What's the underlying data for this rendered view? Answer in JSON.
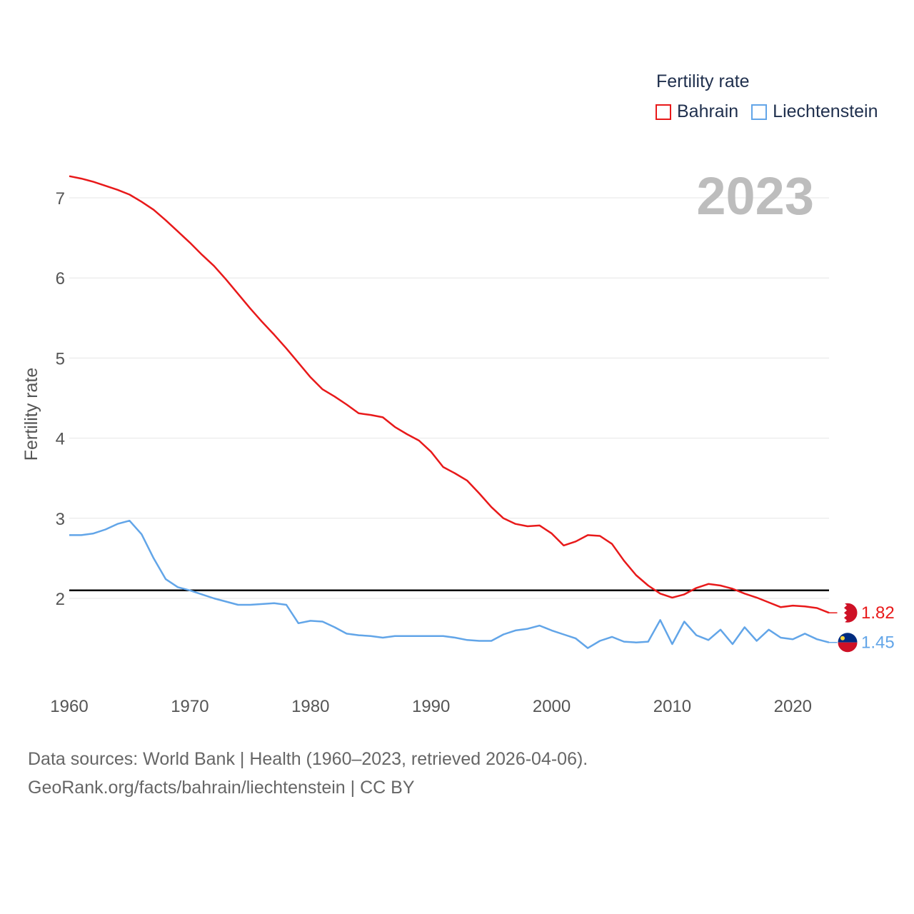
{
  "legend": {
    "title": "Fertility rate",
    "items": [
      {
        "label": "Bahrain",
        "color": "#e8191a"
      },
      {
        "label": "Liechtenstein",
        "color": "#62a5e8"
      }
    ]
  },
  "year_label": "2023",
  "footer": {
    "line1": "Data sources: World Bank | Health (1960–2023, retrieved 2026-04-06).",
    "line2": "GeoRank.org/facts/bahrain/liechtenstein | CC BY"
  },
  "chart_data": {
    "type": "line",
    "title": "Fertility rate",
    "xlabel": "",
    "ylabel": "Fertility rate",
    "xlim": [
      1960,
      2023
    ],
    "ylim": [
      1,
      7.5
    ],
    "x_ticks": [
      1960,
      1970,
      1980,
      1990,
      2000,
      2010,
      2020
    ],
    "y_ticks": [
      2,
      3,
      4,
      5,
      6,
      7
    ],
    "grid": true,
    "reference_line": {
      "y": 2.1,
      "color": "#000000"
    },
    "x": [
      1960,
      1961,
      1962,
      1963,
      1964,
      1965,
      1966,
      1967,
      1968,
      1969,
      1970,
      1971,
      1972,
      1973,
      1974,
      1975,
      1976,
      1977,
      1978,
      1979,
      1980,
      1981,
      1982,
      1983,
      1984,
      1985,
      1986,
      1987,
      1988,
      1989,
      1990,
      1991,
      1992,
      1993,
      1994,
      1995,
      1996,
      1997,
      1998,
      1999,
      2000,
      2001,
      2002,
      2003,
      2004,
      2005,
      2006,
      2007,
      2008,
      2009,
      2010,
      2011,
      2012,
      2013,
      2014,
      2015,
      2016,
      2017,
      2018,
      2019,
      2020,
      2021,
      2022,
      2023
    ],
    "series": [
      {
        "name": "Bahrain",
        "color": "#e8191a",
        "end_label": "1.82",
        "values": [
          7.27,
          7.24,
          7.2,
          7.15,
          7.1,
          7.04,
          6.95,
          6.85,
          6.72,
          6.58,
          6.44,
          6.29,
          6.15,
          5.98,
          5.8,
          5.62,
          5.45,
          5.29,
          5.12,
          4.94,
          4.76,
          4.61,
          4.52,
          4.42,
          4.31,
          4.29,
          4.26,
          4.14,
          4.05,
          3.97,
          3.83,
          3.64,
          3.56,
          3.47,
          3.31,
          3.14,
          3.0,
          2.93,
          2.9,
          2.91,
          2.81,
          2.66,
          2.71,
          2.79,
          2.78,
          2.68,
          2.47,
          2.29,
          2.16,
          2.06,
          2.01,
          2.05,
          2.13,
          2.18,
          2.16,
          2.12,
          2.06,
          2.01,
          1.95,
          1.89,
          1.91,
          1.9,
          1.88,
          1.82
        ]
      },
      {
        "name": "Liechtenstein",
        "color": "#62a5e8",
        "end_label": "1.45",
        "values": [
          2.79,
          2.79,
          2.81,
          2.86,
          2.93,
          2.97,
          2.8,
          2.5,
          2.24,
          2.14,
          2.1,
          2.05,
          2.0,
          1.96,
          1.92,
          1.92,
          1.93,
          1.94,
          1.92,
          1.69,
          1.72,
          1.71,
          1.64,
          1.56,
          1.54,
          1.53,
          1.51,
          1.53,
          1.53,
          1.53,
          1.53,
          1.53,
          1.51,
          1.48,
          1.47,
          1.47,
          1.55,
          1.6,
          1.62,
          1.66,
          1.6,
          1.55,
          1.5,
          1.38,
          1.47,
          1.52,
          1.46,
          1.45,
          1.46,
          1.73,
          1.43,
          1.71,
          1.54,
          1.48,
          1.61,
          1.43,
          1.64,
          1.47,
          1.61,
          1.51,
          1.49,
          1.56,
          1.49,
          1.45
        ]
      }
    ]
  }
}
